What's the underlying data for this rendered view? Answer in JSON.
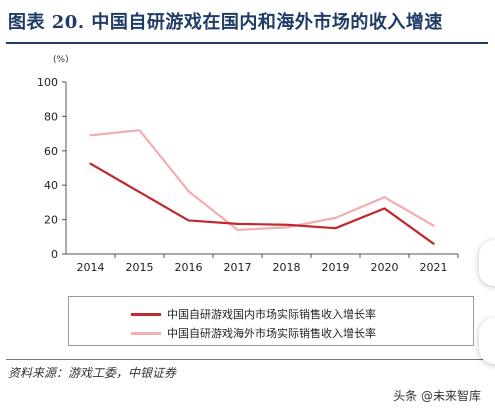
{
  "figure_title": "图表 20. 中国自研游戏在国内和海外市场的收入增速",
  "unit_label": "(%)",
  "source_note": "资料来源：游戏工委，中银证券",
  "watermark": "头条 @未来智库",
  "chart_data": {
    "type": "line",
    "title": "",
    "xlabel": "",
    "ylabel": "",
    "categories": [
      "2014",
      "2015",
      "2016",
      "2017",
      "2018",
      "2019",
      "2020",
      "2021"
    ],
    "ylim": [
      0,
      100
    ],
    "yticks": [
      "0",
      "20",
      "40",
      "60",
      "80",
      "100"
    ],
    "grid": false,
    "legend_position": "bottom",
    "series": [
      {
        "name": "中国自研游戏国内市场实际销售收入增长率",
        "values": [
          52.5,
          36.0,
          19.5,
          17.5,
          17.0,
          15.0,
          26.5,
          6.0
        ],
        "color": "#c0282d"
      },
      {
        "name": "中国自研游戏海外市场实际销售收入增长率",
        "values": [
          69.0,
          72.0,
          36.5,
          14.0,
          15.5,
          21.0,
          33.0,
          16.5
        ],
        "color": "#f2aeb0"
      }
    ]
  }
}
